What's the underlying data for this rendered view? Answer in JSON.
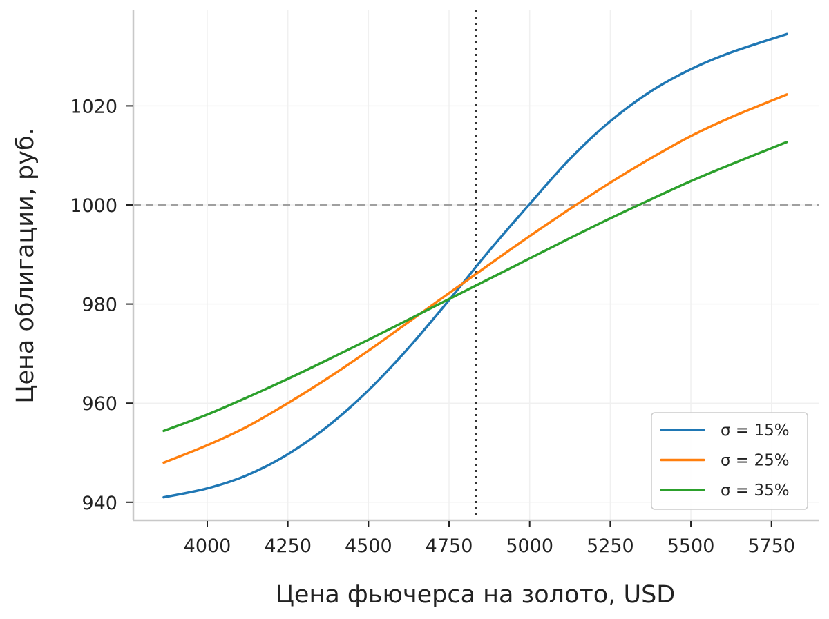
{
  "chart_data": {
    "type": "line",
    "title": "",
    "xlabel": "Цена фьючерса на золото, USD",
    "ylabel": "Цена облигации, руб.",
    "xlim": [
      3800,
      5900
    ],
    "ylim": [
      936,
      1039
    ],
    "x_ticks": [
      4000,
      4250,
      4500,
      4750,
      5000,
      5250,
      5500,
      5750
    ],
    "y_ticks": [
      940,
      960,
      980,
      1000,
      1020
    ],
    "grid": true,
    "legend_position": "lower right",
    "reference_lines": [
      {
        "orientation": "horizontal",
        "value": 1000,
        "style": "dashed",
        "color": "#a0a0a0"
      },
      {
        "orientation": "vertical",
        "value": 4833,
        "style": "dotted",
        "color": "#333333"
      }
    ],
    "x": [
      3865,
      4000,
      4125,
      4250,
      4375,
      4500,
      4625,
      4750,
      4875,
      5000,
      5125,
      5250,
      5375,
      5500,
      5625,
      5798
    ],
    "series": [
      {
        "name": "σ = 15%",
        "color": "#1f77b4",
        "values": [
          941.0,
          942.8,
          945.5,
          949.7,
          955.4,
          962.6,
          971.2,
          980.8,
          990.8,
          1000.2,
          1009.3,
          1016.9,
          1022.9,
          1027.4,
          1030.8,
          1034.5
        ]
      },
      {
        "name": "σ = 25%",
        "color": "#ff7f0e",
        "values": [
          948.0,
          951.5,
          955.3,
          960.0,
          965.1,
          970.6,
          976.4,
          982.2,
          988.0,
          993.7,
          999.2,
          1004.5,
          1009.4,
          1013.9,
          1017.7,
          1022.3
        ]
      },
      {
        "name": "σ = 35%",
        "color": "#2ca02c",
        "values": [
          954.4,
          957.7,
          961.2,
          964.9,
          968.8,
          972.8,
          976.9,
          981.0,
          985.1,
          989.2,
          993.3,
          997.3,
          1001.1,
          1004.8,
          1008.2,
          1012.7
        ]
      }
    ]
  }
}
